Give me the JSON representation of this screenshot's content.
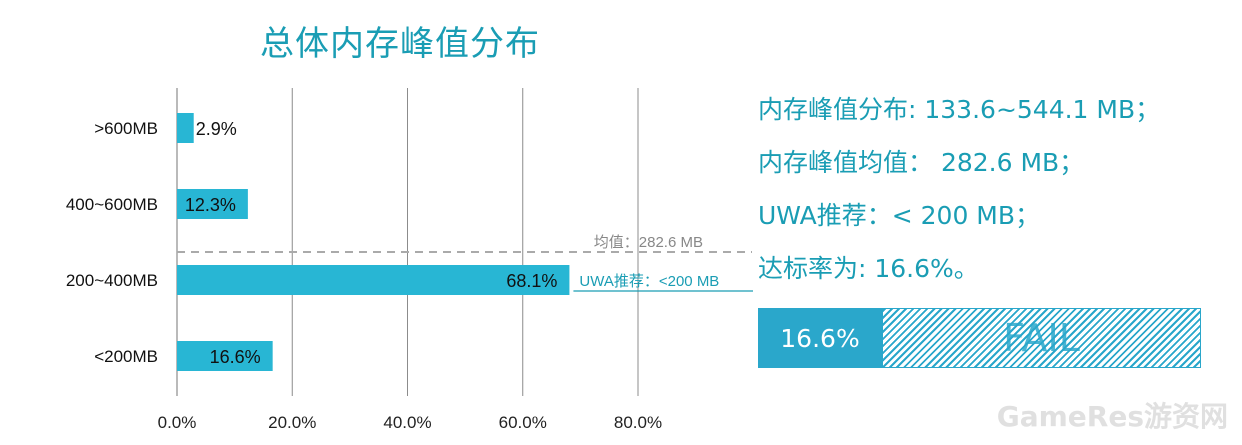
{
  "chart_data": {
    "type": "bar",
    "orientation": "horizontal",
    "title": "总体内存峰值分布",
    "categories": [
      ">600MB",
      "400~600MB",
      "200~400MB",
      "<200MB"
    ],
    "values": [
      2.9,
      12.3,
      68.1,
      16.6
    ],
    "value_labels": [
      "2.9%",
      "12.3%",
      "68.1%",
      "16.6%"
    ],
    "xlim": [
      0,
      80
    ],
    "xticks": [
      "0.0%",
      "20.0%",
      "40.0%",
      "60.0%",
      "80.0%"
    ],
    "grid": "vertical",
    "bar_color": "#28b6d4",
    "annotations": {
      "mean_label": "均值：282.6 MB",
      "recommend_label": "UWA推荐：<200 MB"
    }
  },
  "info": {
    "distribution": "内存峰值分布: 133.6~544.1 MB；",
    "mean": "内存峰值均值： 282.6 MB；",
    "recommendation": "UWA推荐：< 200 MB；",
    "pass_rate": "达标率为: 16.6%。"
  },
  "status": {
    "value": "16.6%",
    "result": "FAIL",
    "accent": "#2aa7cb"
  },
  "watermark": "GameRes游资网"
}
